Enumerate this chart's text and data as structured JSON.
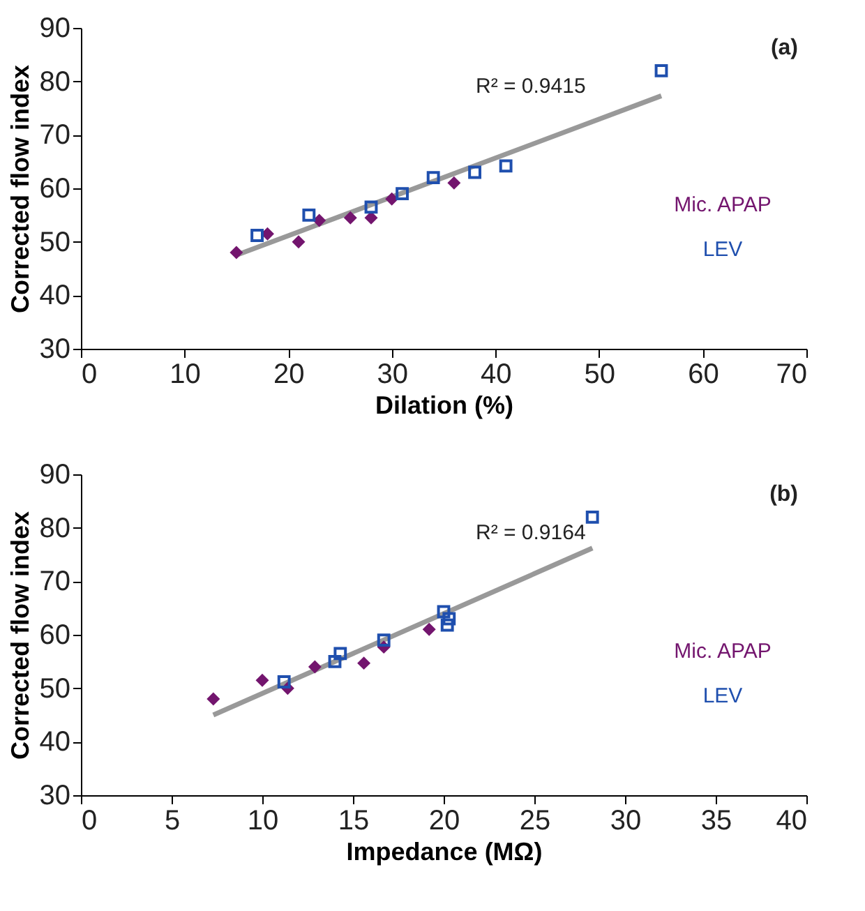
{
  "chart_data": [
    {
      "type": "scatter",
      "xlabel": "Dilation (%)",
      "ylabel": "Corrected flow index",
      "xlim": [
        0,
        70
      ],
      "xticks": [
        0,
        10,
        20,
        30,
        40,
        50,
        60,
        70
      ],
      "ylim": [
        30,
        90
      ],
      "yticks": [
        30,
        40,
        50,
        60,
        70,
        80,
        90
      ],
      "grid": false,
      "legend": "right",
      "annotations": [
        "(a)",
        "R² = 0.9415"
      ],
      "series": [
        {
          "name": "Mic. APAP",
          "color": "#73156e",
          "marker": "diamond",
          "x": [
            15,
            18,
            21,
            23,
            26,
            28,
            30,
            36
          ],
          "values": [
            48,
            51.5,
            50,
            54,
            54.5,
            54.5,
            58,
            61
          ]
        },
        {
          "name": "LEV",
          "color": "#1f4fae",
          "marker": "square",
          "x": [
            17,
            22,
            28,
            31,
            34,
            38,
            41,
            56
          ],
          "values": [
            51.2,
            55,
            56.5,
            59,
            62,
            63,
            64.2,
            82
          ]
        },
        {
          "type": "line",
          "color": "#999999",
          "marker": "none",
          "x": [
            15,
            56
          ],
          "values": [
            47.5,
            77.3
          ]
        }
      ]
    },
    {
      "type": "scatter",
      "xlabel": "Impedance (MΩ)",
      "ylabel": "Corrected flow index",
      "xlim": [
        0,
        40
      ],
      "xticks": [
        0,
        5,
        10,
        15,
        20,
        25,
        30,
        35,
        40
      ],
      "ylim": [
        30,
        90
      ],
      "yticks": [
        30,
        40,
        50,
        60,
        70,
        80,
        90
      ],
      "grid": false,
      "legend": "right",
      "annotations": [
        "(b)",
        "R² = 0.9164"
      ],
      "series": [
        {
          "name": "Mic. APAP",
          "color": "#73156e",
          "marker": "diamond",
          "x": [
            7.3,
            10,
            11.4,
            12.9,
            15.6,
            16.7,
            19.2
          ],
          "values": [
            48,
            51.5,
            50,
            54,
            54.7,
            57.7,
            61
          ]
        },
        {
          "name": "LEV",
          "color": "#1f4fae",
          "marker": "square",
          "x": [
            11.2,
            14,
            14.3,
            16.7,
            20,
            20.3,
            20.2,
            28.2
          ],
          "values": [
            51.2,
            55,
            56.5,
            59,
            64.3,
            63,
            61.8,
            82
          ]
        },
        {
          "type": "line",
          "color": "#999999",
          "marker": "none",
          "x": [
            7.3,
            28.2
          ],
          "values": [
            45,
            76.2
          ]
        }
      ]
    }
  ]
}
